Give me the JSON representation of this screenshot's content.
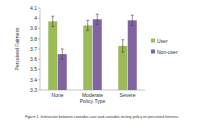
{
  "chart_data": {
    "type": "bar",
    "x_label": "Policy Type",
    "y_label": "Perceived Fairness",
    "categories": [
      "None",
      "Moderate",
      "Severe"
    ],
    "series": [
      {
        "name": "User",
        "color": "#9bbb59",
        "values": [
          3.97,
          3.93,
          3.73
        ],
        "errors": [
          0.05,
          0.05,
          0.06
        ]
      },
      {
        "name": "Non-user",
        "color": "#8064a2",
        "values": [
          3.65,
          3.99,
          3.98
        ],
        "errors": [
          0.05,
          0.05,
          0.05
        ]
      }
    ],
    "ylim": [
      3.3,
      4.1
    ],
    "yticks": [
      3.3,
      3.4,
      3.5,
      3.6,
      3.7,
      3.8,
      3.9,
      4,
      4.1
    ],
    "grid": false,
    "legend": "right",
    "annotations": [
      "Figure 1.",
      "Interaction between cannabis user and cannabis testing policy on perceived fairness."
    ]
  }
}
